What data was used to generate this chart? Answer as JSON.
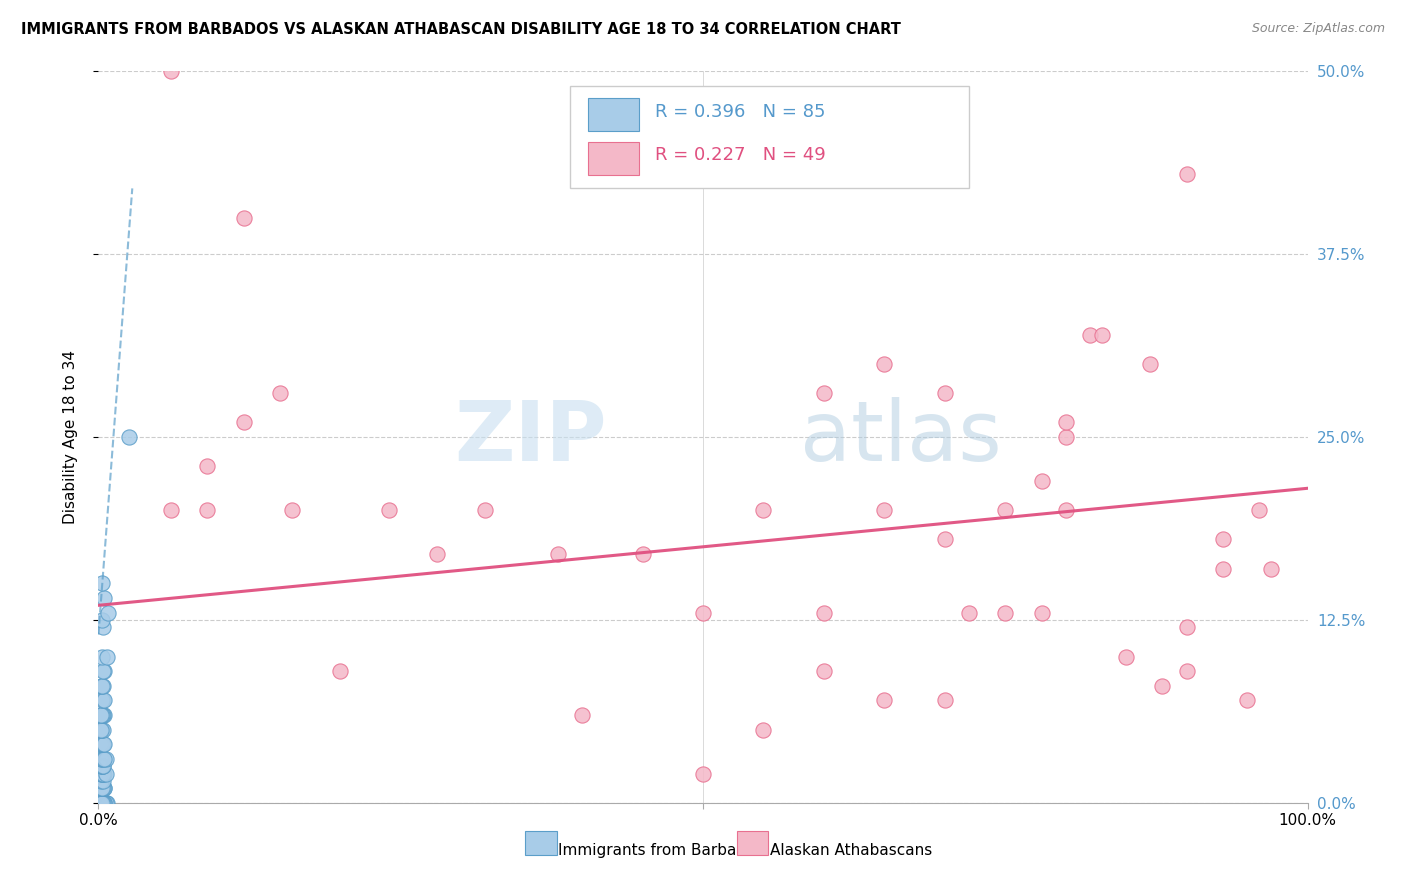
{
  "title": "IMMIGRANTS FROM BARBADOS VS ALASKAN ATHABASCAN DISABILITY AGE 18 TO 34 CORRELATION CHART",
  "source": "Source: ZipAtlas.com",
  "ylabel": "Disability Age 18 to 34",
  "xlim": [
    0.0,
    1.0
  ],
  "ylim": [
    0.0,
    0.5
  ],
  "ytick_labels": [
    "0.0%",
    "12.5%",
    "25.0%",
    "37.5%",
    "50.0%"
  ],
  "ytick_vals": [
    0.0,
    0.125,
    0.25,
    0.375,
    0.5
  ],
  "xtick_vals": [
    0.0,
    0.5,
    1.0
  ],
  "xtick_labels": [
    "0.0%",
    "",
    "100.0%"
  ],
  "grid_color": "#cccccc",
  "background_color": "#ffffff",
  "watermark_zip": "ZIP",
  "watermark_atlas": "atlas",
  "legend_r1": "0.396",
  "legend_n1": "85",
  "legend_r2": "0.227",
  "legend_n2": "49",
  "blue_color": "#a8cce8",
  "blue_marker_edge": "#5b9ec9",
  "blue_line_color": "#5b9ec9",
  "pink_color": "#f4b8c8",
  "pink_marker_edge": "#e87090",
  "pink_line_color": "#e05080",
  "ytick_color": "#5599cc",
  "xtick_color": "#000000",
  "blue_scatter_x": [
    0.005,
    0.003,
    0.004,
    0.006,
    0.007,
    0.002,
    0.003,
    0.004,
    0.005,
    0.003,
    0.002,
    0.003,
    0.004,
    0.002,
    0.003,
    0.004,
    0.006,
    0.005,
    0.003,
    0.004,
    0.002,
    0.003,
    0.004,
    0.005,
    0.003,
    0.004,
    0.002,
    0.003,
    0.005,
    0.003,
    0.004,
    0.002,
    0.003,
    0.005,
    0.004,
    0.003,
    0.002,
    0.004,
    0.003,
    0.005,
    0.002,
    0.003,
    0.004,
    0.006,
    0.003,
    0.004,
    0.002,
    0.003,
    0.004,
    0.002,
    0.003,
    0.004,
    0.006,
    0.005,
    0.003,
    0.004,
    0.002,
    0.003,
    0.004,
    0.005,
    0.002,
    0.003,
    0.004,
    0.002,
    0.003,
    0.005,
    0.004,
    0.003,
    0.002,
    0.004,
    0.003,
    0.005,
    0.002,
    0.004,
    0.003,
    0.005,
    0.004,
    0.003,
    0.007,
    0.004,
    0.003,
    0.008,
    0.005,
    0.003,
    0.025
  ],
  "blue_scatter_y": [
    0.0,
    0.0,
    0.0,
    0.0,
    0.0,
    0.0,
    0.0,
    0.0,
    0.0,
    0.0,
    0.0,
    0.0,
    0.0,
    0.0,
    0.0,
    0.0,
    0.0,
    0.0,
    0.0,
    0.0,
    0.0,
    0.0,
    0.0,
    0.0,
    0.0,
    0.0,
    0.0,
    0.0,
    0.01,
    0.01,
    0.01,
    0.01,
    0.01,
    0.01,
    0.01,
    0.01,
    0.015,
    0.015,
    0.02,
    0.02,
    0.02,
    0.02,
    0.02,
    0.02,
    0.025,
    0.025,
    0.025,
    0.025,
    0.025,
    0.03,
    0.03,
    0.03,
    0.03,
    0.03,
    0.04,
    0.04,
    0.04,
    0.04,
    0.04,
    0.04,
    0.05,
    0.05,
    0.05,
    0.05,
    0.06,
    0.06,
    0.06,
    0.06,
    0.06,
    0.07,
    0.07,
    0.07,
    0.08,
    0.08,
    0.08,
    0.09,
    0.09,
    0.1,
    0.1,
    0.12,
    0.125,
    0.13,
    0.14,
    0.15,
    0.25
  ],
  "pink_scatter_x": [
    0.06,
    0.12,
    0.15,
    0.09,
    0.06,
    0.09,
    0.12,
    0.16,
    0.2,
    0.24,
    0.28,
    0.32,
    0.38,
    0.45,
    0.5,
    0.55,
    0.6,
    0.65,
    0.7,
    0.75,
    0.78,
    0.8,
    0.82,
    0.85,
    0.88,
    0.9,
    0.93,
    0.95,
    0.97,
    0.6,
    0.65,
    0.7,
    0.72,
    0.75,
    0.78,
    0.8,
    0.83,
    0.87,
    0.9,
    0.93,
    0.96,
    0.4,
    0.5,
    0.55,
    0.6,
    0.65,
    0.7,
    0.8,
    0.9
  ],
  "pink_scatter_y": [
    0.5,
    0.4,
    0.28,
    0.23,
    0.2,
    0.2,
    0.26,
    0.2,
    0.09,
    0.2,
    0.17,
    0.2,
    0.17,
    0.17,
    0.13,
    0.2,
    0.13,
    0.07,
    0.18,
    0.2,
    0.13,
    0.25,
    0.32,
    0.1,
    0.08,
    0.09,
    0.16,
    0.07,
    0.16,
    0.28,
    0.3,
    0.07,
    0.13,
    0.13,
    0.22,
    0.26,
    0.32,
    0.3,
    0.12,
    0.18,
    0.2,
    0.06,
    0.02,
    0.05,
    0.09,
    0.2,
    0.28,
    0.2,
    0.43
  ],
  "blue_trend_x": [
    0.0,
    0.028
  ],
  "blue_trend_y": [
    0.115,
    0.42
  ],
  "pink_trend_x": [
    0.0,
    1.0
  ],
  "pink_trend_y": [
    0.135,
    0.215
  ]
}
